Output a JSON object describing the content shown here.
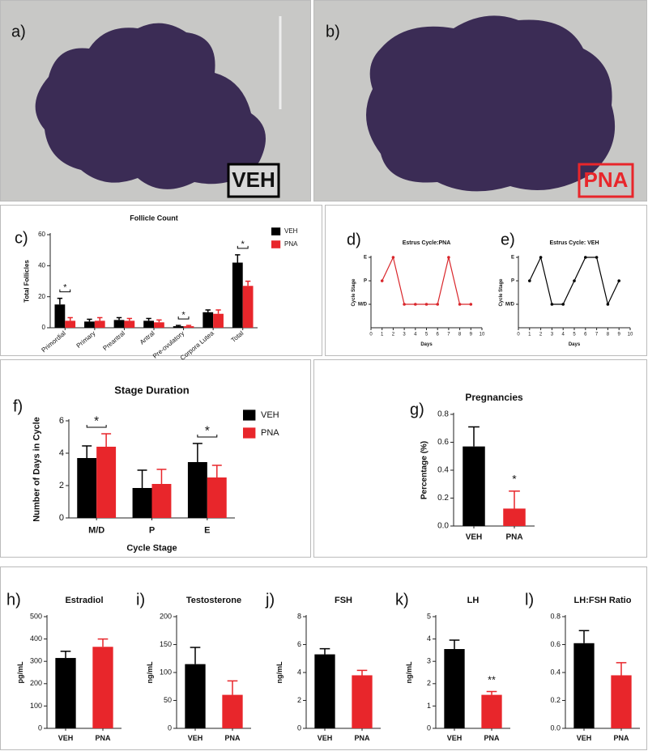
{
  "images": [
    {
      "panel": "a)",
      "label": "VEH"
    },
    {
      "panel": "b)",
      "label": "PNA"
    }
  ],
  "chart_data": [
    {
      "type": "bar",
      "panel": "c)",
      "title": "Follicle Count",
      "ylabel": "Total Follicles",
      "categories": [
        "Primordial",
        "Primary",
        "Preantral",
        "Antral",
        "Pre-ovulatory",
        "Corpora Lutea",
        "Total"
      ],
      "series": [
        {
          "name": "VEH",
          "color": "#000000",
          "values": [
            15,
            4,
            5,
            4.5,
            1,
            10,
            42
          ],
          "errors": [
            4,
            1.5,
            1.5,
            1.5,
            0.5,
            1.5,
            5
          ]
        },
        {
          "name": "PNA",
          "color": "#e8262b",
          "values": [
            4.5,
            4.5,
            4.5,
            3.5,
            1,
            9,
            27
          ],
          "errors": [
            2,
            2,
            1.5,
            1.5,
            0.5,
            2.5,
            3
          ]
        }
      ],
      "ylim": [
        0,
        60
      ],
      "yticks": [
        0,
        20,
        40,
        60
      ],
      "annotations": [
        {
          "text": "*",
          "category": "Primordial"
        },
        {
          "text": "*",
          "category": "Pre-ovulatory"
        },
        {
          "text": "*",
          "category": "Total"
        }
      ]
    },
    {
      "type": "line",
      "panel": "d)",
      "title": "Estrus Cycle:PNA",
      "xlabel": "Days",
      "ylabel": "Cycle Stage",
      "color": "#d9262b",
      "x": [
        1,
        2,
        3,
        4,
        5,
        6,
        7,
        8,
        9
      ],
      "values": [
        "P",
        "E",
        "M/D",
        "M/D",
        "M/D",
        "M/D",
        "E",
        "M/D",
        "M/D"
      ],
      "ycategories": [
        "M/D",
        "P",
        "E"
      ],
      "xlim": [
        0,
        10
      ],
      "xticks": [
        0,
        1,
        2,
        3,
        4,
        5,
        6,
        7,
        8,
        9,
        10
      ]
    },
    {
      "type": "line",
      "panel": "e)",
      "title": "Estrus Cycle: VEH",
      "xlabel": "Days",
      "ylabel": "Cycle Stage",
      "color": "#000000",
      "x": [
        1,
        2,
        3,
        4,
        5,
        6,
        7,
        8,
        9
      ],
      "values": [
        "P",
        "E",
        "M/D",
        "M/D",
        "P",
        "E",
        "E",
        "M/D",
        "P"
      ],
      "ycategories": [
        "M/D",
        "P",
        "E"
      ],
      "xlim": [
        0,
        10
      ],
      "xticks": [
        0,
        1,
        2,
        3,
        4,
        5,
        6,
        7,
        8,
        9,
        10
      ]
    },
    {
      "type": "bar",
      "panel": "f)",
      "title": "Stage Duration",
      "xlabel": "Cycle Stage",
      "ylabel": "Number of Days in Cycle",
      "categories": [
        "M/D",
        "P",
        "E"
      ],
      "series": [
        {
          "name": "VEH",
          "color": "#000000",
          "values": [
            3.7,
            1.85,
            3.45
          ],
          "errors": [
            0.75,
            1.1,
            1.15
          ]
        },
        {
          "name": "PNA",
          "color": "#e8262b",
          "values": [
            4.4,
            2.1,
            2.5
          ],
          "errors": [
            0.8,
            0.9,
            0.75
          ]
        }
      ],
      "ylim": [
        0,
        6
      ],
      "yticks": [
        0,
        2,
        4,
        6
      ],
      "annotations": [
        {
          "text": "*",
          "category": "M/D"
        },
        {
          "text": "*",
          "category": "E"
        }
      ]
    },
    {
      "type": "bar",
      "panel": "g)",
      "title": "Pregnancies",
      "ylabel": "Percentage (%)",
      "categories": [
        "VEH",
        "PNA"
      ],
      "values": [
        0.57,
        0.125
      ],
      "errors": [
        0.14,
        0.125
      ],
      "colors": [
        "#000000",
        "#e8262b"
      ],
      "ylim": [
        0,
        0.8
      ],
      "yticks": [
        {
          "value": 0,
          "label": "0.0"
        },
        0.2,
        0.4,
        0.6,
        0.8
      ],
      "annotations": [
        {
          "text": "*",
          "category": "PNA"
        }
      ]
    },
    {
      "type": "bar",
      "panel": "h)",
      "title": "Estradiol",
      "ylabel": "pg/mL",
      "categories": [
        "VEH",
        "PNA"
      ],
      "values": [
        315,
        365
      ],
      "errors": [
        30,
        35
      ],
      "colors": [
        "#000000",
        "#e8262b"
      ],
      "ylim": [
        0,
        500
      ],
      "yticks": [
        0,
        100,
        200,
        300,
        400,
        500
      ]
    },
    {
      "type": "bar",
      "panel": "i)",
      "title": "Testosterone",
      "ylabel": "ng/mL",
      "categories": [
        "VEH",
        "PNA"
      ],
      "values": [
        115,
        60
      ],
      "errors": [
        30,
        25
      ],
      "colors": [
        "#000000",
        "#e8262b"
      ],
      "ylim": [
        0,
        200
      ],
      "yticks": [
        0,
        50,
        100,
        150,
        200
      ]
    },
    {
      "type": "bar",
      "panel": "j)",
      "title": "FSH",
      "ylabel": "ng/mL",
      "categories": [
        "VEH",
        "PNA"
      ],
      "values": [
        5.3,
        3.8
      ],
      "errors": [
        0.4,
        0.35
      ],
      "colors": [
        "#000000",
        "#e8262b"
      ],
      "ylim": [
        0,
        8
      ],
      "yticks": [
        0,
        2,
        4,
        6,
        8
      ]
    },
    {
      "type": "bar",
      "panel": "k)",
      "title": "LH",
      "ylabel": "ng/mL",
      "categories": [
        "VEH",
        "PNA"
      ],
      "values": [
        3.55,
        1.5
      ],
      "errors": [
        0.4,
        0.15
      ],
      "colors": [
        "#000000",
        "#e8262b"
      ],
      "ylim": [
        0,
        5
      ],
      "yticks": [
        0,
        1,
        2,
        3,
        4,
        5
      ],
      "annotations": [
        {
          "text": "**",
          "category": "PNA"
        }
      ]
    },
    {
      "type": "bar",
      "panel": "l)",
      "title": "LH:FSH Ratio",
      "categories": [
        "VEH",
        "PNA"
      ],
      "values": [
        0.61,
        0.38
      ],
      "errors": [
        0.09,
        0.09
      ],
      "colors": [
        "#000000",
        "#e8262b"
      ],
      "ylim": [
        0,
        0.8
      ],
      "yticks": [
        {
          "value": 0,
          "label": "0.0"
        },
        0.2,
        0.4,
        0.6,
        0.8
      ]
    }
  ]
}
